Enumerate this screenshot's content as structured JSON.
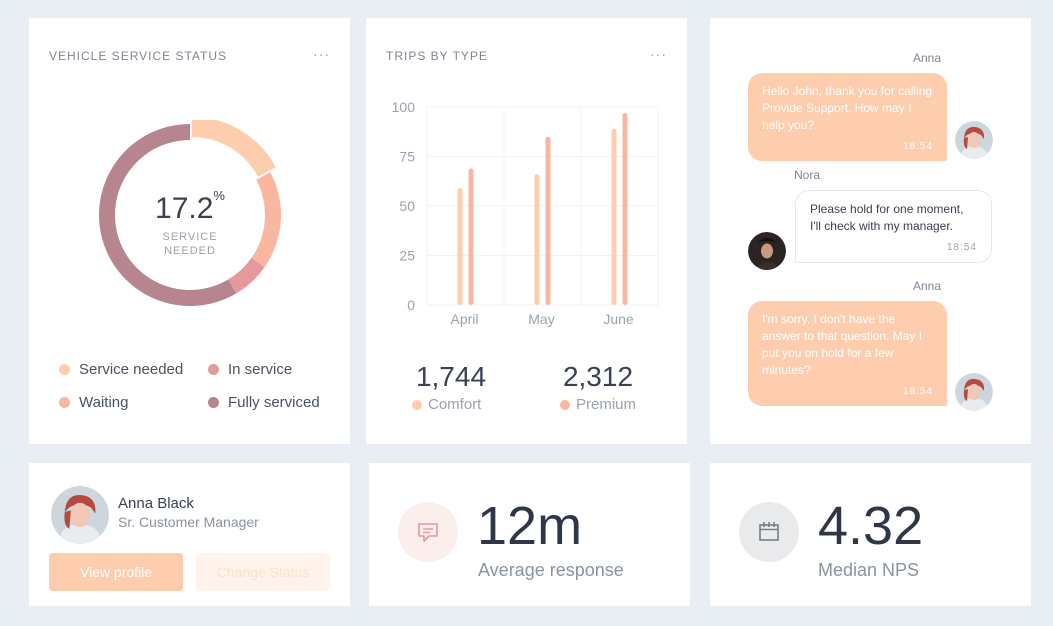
{
  "service_status": {
    "title": "VEHICLE SERVICE STATUS",
    "menu": "···",
    "value": "17.2",
    "unit": "%",
    "sub_line1": "SERVICE",
    "sub_line2": "NEEDED",
    "segments": [
      {
        "name": "Service needed",
        "value": 17.2,
        "color": "#fecdae"
      },
      {
        "name": "Waiting",
        "value": 17.5,
        "color": "#f9b7a2"
      },
      {
        "name": "In service",
        "value": 6.8,
        "color": "#e5999c"
      },
      {
        "name": "Fully serviced",
        "value": 58.5,
        "color": "#b6858d"
      }
    ],
    "legend": [
      {
        "label": "Service needed",
        "color": "#fecdae"
      },
      {
        "label": "In service",
        "color": "#e5999c"
      },
      {
        "label": "Waiting",
        "color": "#f9b7a2"
      },
      {
        "label": "Fully serviced",
        "color": "#b6858d"
      }
    ]
  },
  "trips": {
    "title": "TRIPS BY TYPE",
    "menu": "···",
    "chart_data": {
      "type": "bar",
      "categories": [
        "April",
        "May",
        "June"
      ],
      "series": [
        {
          "name": "Comfort",
          "values": [
            59,
            66,
            89
          ],
          "color": "#fecdae"
        },
        {
          "name": "Premium",
          "values": [
            69,
            85,
            97
          ],
          "color": "#f9b7a2"
        }
      ],
      "ylim": [
        0,
        100
      ],
      "yticks": [
        0,
        25,
        50,
        75,
        100
      ],
      "grid": true
    },
    "totals": [
      {
        "value": "1,744",
        "label": "Comfort",
        "color": "#fecdae"
      },
      {
        "value": "2,312",
        "label": "Premium",
        "color": "#f9b7a2"
      }
    ]
  },
  "chat": {
    "messages": [
      {
        "sender": "Anna",
        "text": "Hello John, thank you for calling Provide Support. How may I help you?",
        "time": "18:54",
        "direction": "out"
      },
      {
        "sender": "Nora",
        "text": "Please hold for one moment, I'll check with my manager.",
        "time": "18:54",
        "direction": "in"
      },
      {
        "sender": "Anna",
        "text": "I'm sorry, I don't have the answer to that question. May I put you on hold for a few minutes?",
        "time": "18:54",
        "direction": "out"
      }
    ]
  },
  "profile": {
    "name": "Anna Black",
    "role": "Sr. Customer Manager",
    "view_label": "View profile",
    "status_label": "Change Status"
  },
  "kpi_response": {
    "value": "12m",
    "label": "Average response",
    "icon": "message-icon"
  },
  "kpi_nps": {
    "value": "4.32",
    "label": "Median NPS",
    "icon": "calendar-icon"
  }
}
